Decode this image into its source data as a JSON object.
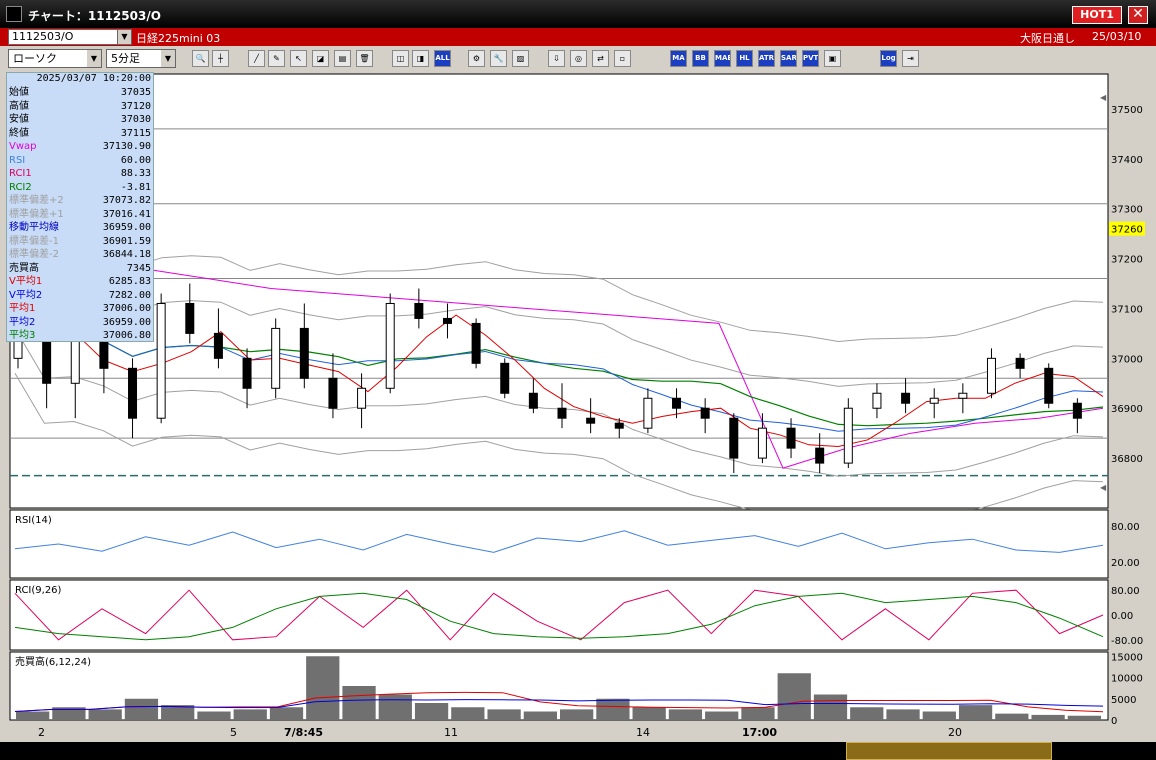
{
  "window": {
    "title": "チャート：1112503/O",
    "hot_label": "HOT1",
    "close_glyph": "✕",
    "app_icon": "chart-app-icon"
  },
  "header": {
    "symbol": "1112503/O",
    "product": "日経225mini 03",
    "session": "大阪日通し",
    "date": "25/03/10"
  },
  "toolbar": {
    "chart_type": "ローソク",
    "interval": "5分足",
    "buttons": [
      {
        "name": "zoom-icon",
        "glyph": "🔍"
      },
      {
        "name": "crosshair-icon",
        "glyph": "┼"
      },
      {
        "name": "draw-line-icon",
        "glyph": "╱"
      },
      {
        "name": "draw-tool-icon",
        "glyph": "✎"
      },
      {
        "name": "cursor-icon",
        "glyph": "↖"
      },
      {
        "name": "shape-icon",
        "glyph": "◪"
      },
      {
        "name": "text-icon",
        "glyph": "▤"
      },
      {
        "name": "delete-icon",
        "glyph": "🗑"
      },
      {
        "name": "candle-icon",
        "glyph": "◫"
      },
      {
        "name": "candle-select-icon",
        "glyph": "◨"
      },
      {
        "name": "all-icon",
        "glyph": "ALL"
      },
      {
        "name": "settings-icon",
        "glyph": "⚙"
      },
      {
        "name": "wrench-icon",
        "glyph": "🔧"
      },
      {
        "name": "color-icon",
        "glyph": "▨"
      },
      {
        "name": "load-icon",
        "glyph": "⇩"
      },
      {
        "name": "search-chart-icon",
        "glyph": "◎"
      },
      {
        "name": "compare-icon",
        "glyph": "⇄"
      },
      {
        "name": "disabled-icon",
        "glyph": "▫"
      },
      {
        "name": "ma-icon",
        "glyph": "MA"
      },
      {
        "name": "bb-icon",
        "glyph": "BB"
      },
      {
        "name": "mae-icon",
        "glyph": "MAE"
      },
      {
        "name": "hl-icon",
        "glyph": "HL"
      },
      {
        "name": "atr-icon",
        "glyph": "ATR"
      },
      {
        "name": "sar-icon",
        "glyph": "SAR"
      },
      {
        "name": "pvt-icon",
        "glyph": "PVT"
      },
      {
        "name": "box-icon",
        "glyph": "▣"
      },
      {
        "name": "log-icon",
        "glyph": "Log"
      },
      {
        "name": "export-icon",
        "glyph": "⇥"
      }
    ]
  },
  "info": {
    "timestamp": "2025/03/07 10:20:00",
    "rows": [
      {
        "label": "始値",
        "value": "37035",
        "color": "#000000"
      },
      {
        "label": "高値",
        "value": "37120",
        "color": "#000000"
      },
      {
        "label": "安値",
        "value": "37030",
        "color": "#000000"
      },
      {
        "label": "終値",
        "value": "37115",
        "color": "#000000"
      },
      {
        "label": "Vwap",
        "value": "37130.90",
        "color": "#e000e0"
      },
      {
        "label": "RSI",
        "value": "60.00",
        "color": "#4080e0"
      },
      {
        "label": "RCI1",
        "value": "88.33",
        "color": "#e00060"
      },
      {
        "label": "RCI2",
        "value": "-3.81",
        "color": "#008000"
      },
      {
        "label": "標準偏差+2",
        "value": "37073.82",
        "color": "#a0a0a0"
      },
      {
        "label": "標準偏差+1",
        "value": "37016.41",
        "color": "#a0a0a0"
      },
      {
        "label": "移動平均線",
        "value": "36959.00",
        "color": "#0000c0"
      },
      {
        "label": "標準偏差-1",
        "value": "36901.59",
        "color": "#a0a0a0"
      },
      {
        "label": "標準偏差-2",
        "value": "36844.18",
        "color": "#a0a0a0"
      },
      {
        "label": "売買高",
        "value": "7345",
        "color": "#000000"
      },
      {
        "label": "V平均1",
        "value": "6285.83",
        "color": "#e00000"
      },
      {
        "label": "V平均2",
        "value": "7282.00",
        "color": "#0000e0"
      },
      {
        "label": "平均1",
        "value": "37006.00",
        "color": "#e00000"
      },
      {
        "label": "平均2",
        "value": "36959.00",
        "color": "#0000e0"
      },
      {
        "label": "平均3",
        "value": "37006.80",
        "color": "#008000"
      }
    ]
  },
  "panels": {
    "rsi_label": "RSI(14)",
    "rci_label": "RCI(9,26)",
    "vol_label": "売買高(6,12,24)"
  },
  "axes": {
    "price_ticks": [
      "37500",
      "37400",
      "37300",
      "37200",
      "37100",
      "37000",
      "36900",
      "36800"
    ],
    "current_price": "37260",
    "rsi_ticks": [
      "80.00",
      "20.00"
    ],
    "rci_ticks": [
      "80.00",
      "0.00",
      "-80.00"
    ],
    "vol_ticks": [
      "15000",
      "10000",
      "5000",
      "0"
    ],
    "x_ticks": [
      "2",
      "5",
      "7/8:45",
      "11",
      "14",
      "17:00",
      "20"
    ]
  },
  "colors": {
    "plot_bg": "#ffffff",
    "current_price_bg": "#ffff00",
    "vwap": "#e000e0",
    "ma": "#2060e0",
    "bb": "#a0a0a0",
    "avg1": "#e00000",
    "avg3": "#008000",
    "rsi": "#4080e0",
    "rci1": "#e00060",
    "rci2": "#008000"
  },
  "chart_data": {
    "type": "candlestick",
    "ylim": [
      36700,
      37570
    ],
    "reference_lines": [
      37460,
      37310,
      37160,
      36960,
      36840
    ],
    "dashed_line": 36765,
    "ohlc_samples": [
      [
        37000,
        37180,
        36980,
        37150
      ],
      [
        37150,
        37140,
        36900,
        36950
      ],
      [
        36950,
        37080,
        36880,
        37060
      ],
      [
        37060,
        37110,
        36930,
        36980
      ],
      [
        36980,
        37000,
        36840,
        36880
      ],
      [
        36880,
        37130,
        36870,
        37110
      ],
      [
        37110,
        37150,
        37030,
        37050
      ],
      [
        37050,
        37100,
        36980,
        37000
      ],
      [
        37000,
        37020,
        36900,
        36940
      ],
      [
        36940,
        37080,
        36920,
        37060
      ],
      [
        37060,
        37110,
        36940,
        36960
      ],
      [
        36960,
        37010,
        36880,
        36900
      ],
      [
        36900,
        36970,
        36860,
        36940
      ],
      [
        36940,
        37130,
        36930,
        37110
      ],
      [
        37110,
        37140,
        37060,
        37080
      ],
      [
        37080,
        37110,
        37040,
        37070
      ],
      [
        37070,
        37080,
        36980,
        36990
      ],
      [
        36990,
        37000,
        36920,
        36930
      ],
      [
        36930,
        36960,
        36890,
        36900
      ],
      [
        36900,
        36950,
        36860,
        36880
      ],
      [
        36880,
        36920,
        36850,
        36870
      ],
      [
        36870,
        36880,
        36840,
        36860
      ],
      [
        36860,
        36940,
        36850,
        36920
      ],
      [
        36920,
        36940,
        36880,
        36900
      ],
      [
        36900,
        36920,
        36850,
        36880
      ],
      [
        36880,
        36890,
        36770,
        36800
      ],
      [
        36800,
        36890,
        36790,
        36860
      ],
      [
        36860,
        36880,
        36800,
        36820
      ],
      [
        36820,
        36850,
        36770,
        36790
      ],
      [
        36790,
        36920,
        36780,
        36900
      ],
      [
        36900,
        36950,
        36880,
        36930
      ],
      [
        36930,
        36960,
        36890,
        36910
      ],
      [
        36910,
        36940,
        36880,
        36920
      ],
      [
        36920,
        36950,
        36890,
        36930
      ],
      [
        36930,
        37020,
        36920,
        37000
      ],
      [
        37000,
        37010,
        36960,
        36980
      ],
      [
        36980,
        36990,
        36900,
        36910
      ],
      [
        36910,
        36920,
        36850,
        36880
      ]
    ],
    "rsi_samples": [
      42,
      50,
      38,
      62,
      48,
      70,
      44,
      58,
      40,
      66,
      50,
      36,
      60,
      54,
      72,
      48,
      56,
      64,
      46,
      68,
      42,
      52,
      58,
      40,
      36,
      48
    ],
    "rci1_samples": [
      70,
      -80,
      20,
      -60,
      80,
      -80,
      -70,
      60,
      -40,
      80,
      -80,
      70,
      -20,
      -80,
      40,
      80,
      -60,
      80,
      60,
      -80,
      20,
      -80,
      70,
      80,
      -60,
      0
    ],
    "rci2_samples": [
      -40,
      -60,
      -70,
      -80,
      -70,
      -40,
      20,
      60,
      70,
      50,
      -20,
      -60,
      -70,
      -75,
      -70,
      -60,
      -30,
      30,
      60,
      70,
      40,
      50,
      60,
      40,
      -10,
      -70
    ],
    "volume_samples": [
      2000,
      3000,
      2500,
      5000,
      3500,
      2000,
      2500,
      3000,
      15000,
      8000,
      6000,
      4000,
      3000,
      2500,
      2000,
      2500,
      5000,
      3000,
      2500,
      2000,
      3000,
      11000,
      6000,
      3000,
      2500,
      2000,
      3500,
      1500,
      1200,
      1000
    ]
  }
}
